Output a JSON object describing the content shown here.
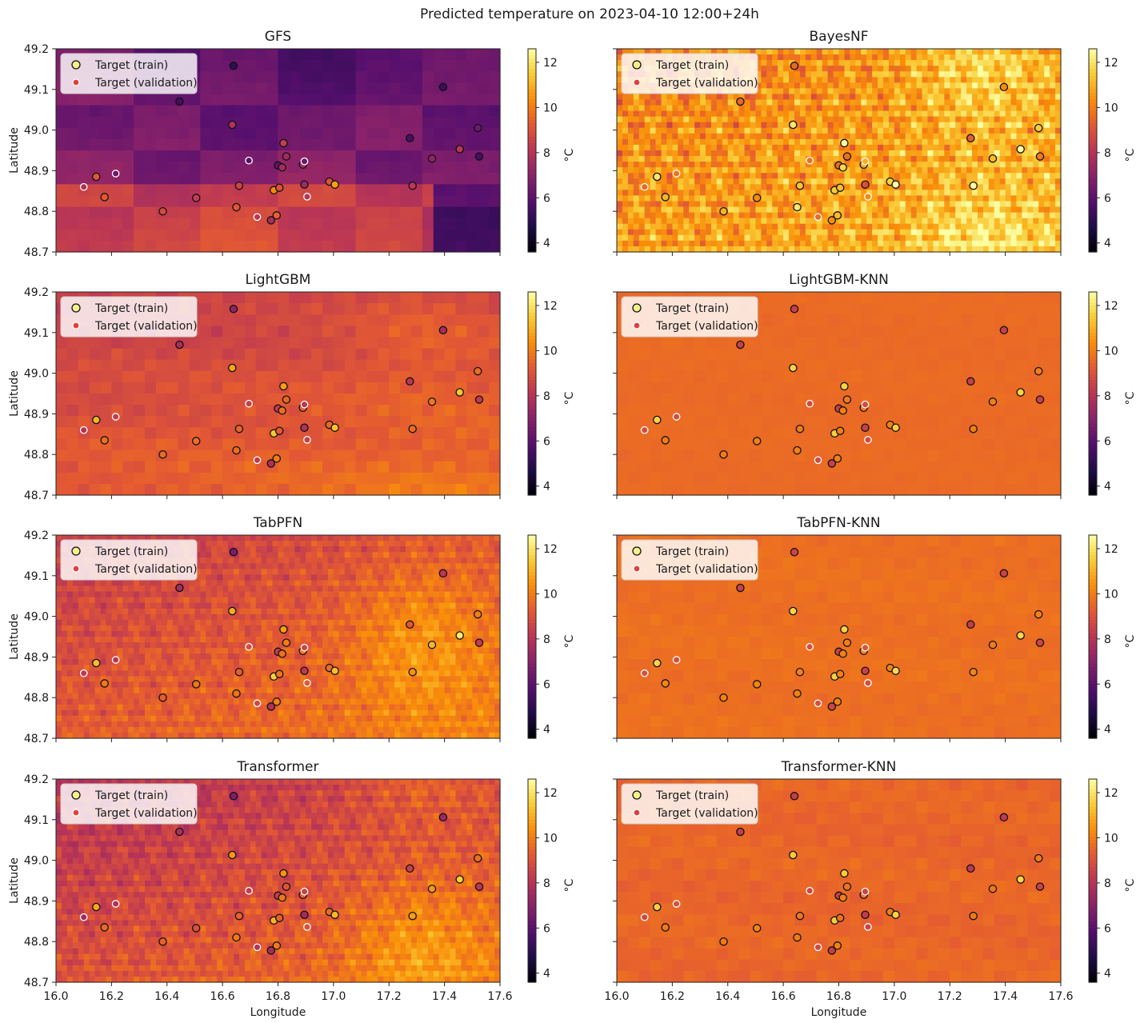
{
  "figure_title": "Predicted temperature on 2023-04-10 12:00+24h",
  "legend": {
    "train_label": "Target (train)",
    "validation_label": "Target (validation)"
  },
  "colorbar": {
    "label": "°C",
    "ticks": [
      4,
      6,
      8,
      10,
      12
    ],
    "range": [
      3.6,
      12.6
    ]
  },
  "axes": {
    "xlabel": "Longitude",
    "ylabel": "Latitude",
    "xlim": [
      16.0,
      17.6
    ],
    "ylim": [
      48.7,
      49.2
    ],
    "xticks": [
      16.0,
      16.2,
      16.4,
      16.6,
      16.8,
      17.0,
      17.2,
      17.4,
      17.6
    ],
    "yticks": [
      48.7,
      48.8,
      48.9,
      49.0,
      49.1,
      49.2
    ],
    "xtick_labels": [
      "16.0",
      "16.2",
      "16.4",
      "16.6",
      "16.8",
      "17.0",
      "17.2",
      "17.4",
      "17.6"
    ],
    "ytick_labels": [
      "48.7",
      "48.8",
      "48.9",
      "49.0",
      "49.1",
      "49.2"
    ]
  },
  "colors": {
    "cmap": [
      "#000004",
      "#1f0c48",
      "#550f6d",
      "#88226a",
      "#ba3655",
      "#e35933",
      "#f98e09",
      "#f9cb35",
      "#fcffa4"
    ],
    "marker_edge_train": "#111111",
    "marker_edge_validation": "#ffffff",
    "legend_train_fill": "#f4f18a",
    "legend_validation_fill": "#e0403a"
  },
  "chart_data": {
    "type": "heatmap",
    "title": "Predicted temperature on 2023-04-10 12:00+24h",
    "panels": [
      {
        "title": "GFS",
        "base": 6.6,
        "x_gradient": -0.4,
        "y_gradient": -1.2,
        "texture": 0.2,
        "bright_east": 0.0,
        "smooth": true,
        "blocks": true
      },
      {
        "title": "BayesNF",
        "base": 10.6,
        "x_gradient": 0.6,
        "y_gradient": -0.6,
        "texture": 1.8,
        "bright_east": 1.2,
        "smooth": false,
        "blocks": false
      },
      {
        "title": "LightGBM",
        "base": 9.0,
        "x_gradient": 0.4,
        "y_gradient": -1.0,
        "texture": 0.5,
        "bright_east": 0.4,
        "smooth": true,
        "blocks": false
      },
      {
        "title": "LightGBM-KNN",
        "base": 9.6,
        "x_gradient": 0.0,
        "y_gradient": 0.0,
        "texture": 0.1,
        "bright_east": 0.0,
        "smooth": true,
        "blocks": false
      },
      {
        "title": "TabPFN",
        "base": 9.2,
        "x_gradient": 0.8,
        "y_gradient": -0.9,
        "texture": 0.9,
        "bright_east": 1.0,
        "smooth": false,
        "blocks": false
      },
      {
        "title": "TabPFN-KNN",
        "base": 9.7,
        "x_gradient": 0.0,
        "y_gradient": 0.0,
        "texture": 0.2,
        "bright_east": 0.0,
        "smooth": true,
        "blocks": false
      },
      {
        "title": "Transformer",
        "base": 8.9,
        "x_gradient": 0.9,
        "y_gradient": -1.1,
        "texture": 1.0,
        "bright_east": 1.0,
        "smooth": false,
        "blocks": false
      },
      {
        "title": "Transformer-KNN",
        "base": 9.5,
        "x_gradient": 0.0,
        "y_gradient": 0.0,
        "texture": 0.3,
        "bright_east": 0.0,
        "smooth": true,
        "blocks": false
      }
    ],
    "stations_train": [
      [
        16.145,
        48.885
      ],
      [
        16.175,
        48.835
      ],
      [
        16.385,
        48.8
      ],
      [
        16.445,
        49.07
      ],
      [
        16.505,
        48.833
      ],
      [
        16.635,
        49.013
      ],
      [
        16.64,
        49.158
      ],
      [
        16.65,
        48.81
      ],
      [
        16.66,
        48.863
      ],
      [
        16.775,
        48.778
      ],
      [
        16.785,
        48.852
      ],
      [
        16.795,
        48.79
      ],
      [
        16.8,
        48.913
      ],
      [
        16.805,
        48.858
      ],
      [
        16.815,
        48.908
      ],
      [
        16.82,
        48.968
      ],
      [
        16.83,
        48.935
      ],
      [
        16.89,
        48.915
      ],
      [
        16.895,
        48.866
      ],
      [
        16.985,
        48.873
      ],
      [
        17.005,
        48.866
      ],
      [
        17.275,
        48.98
      ],
      [
        17.285,
        48.863
      ],
      [
        17.355,
        48.93
      ],
      [
        17.395,
        49.106
      ],
      [
        17.455,
        48.953
      ],
      [
        17.52,
        49.005
      ],
      [
        17.525,
        48.935
      ]
    ],
    "stations_validation": [
      [
        16.1,
        48.86
      ],
      [
        16.215,
        48.893
      ],
      [
        16.695,
        48.925
      ],
      [
        16.725,
        48.786
      ],
      [
        16.895,
        48.923
      ],
      [
        16.905,
        48.836
      ]
    ]
  }
}
